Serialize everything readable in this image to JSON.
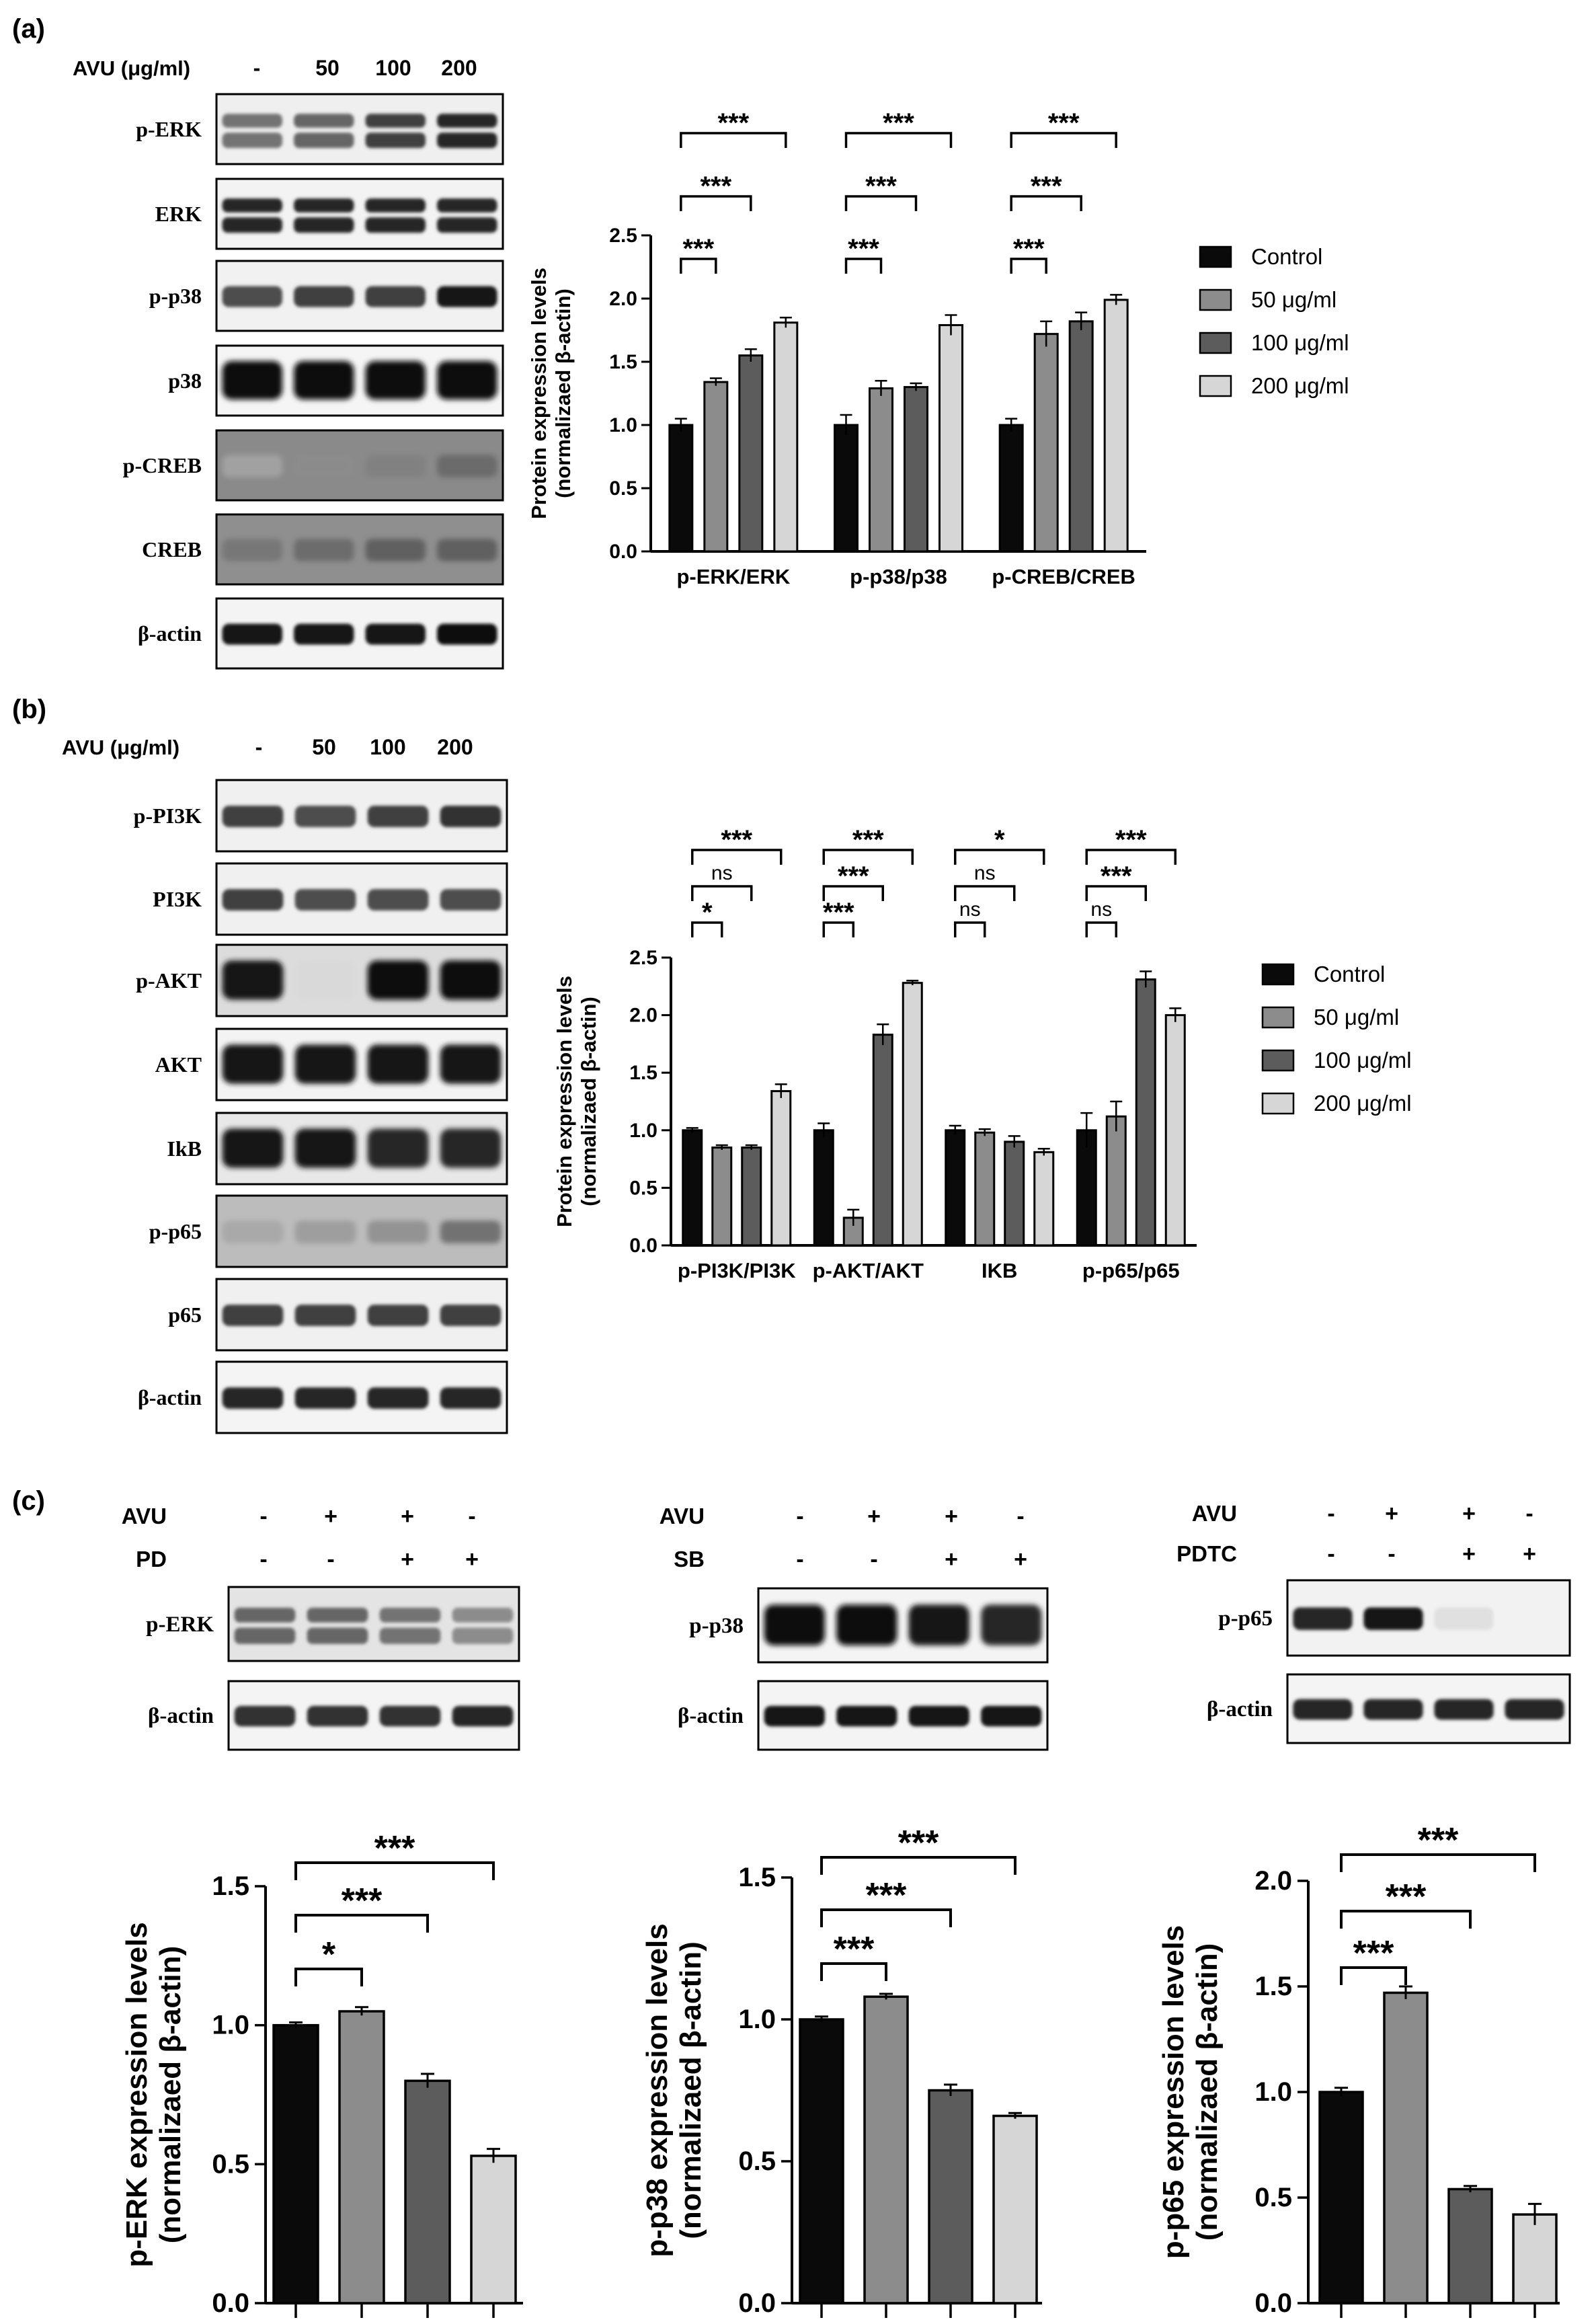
{
  "colors": {
    "Control": "#0a0a0a",
    "50 μg/ml": "#8c8c8c",
    "100 μg/ml": "#5c5c5c",
    "200 μg/ml": "#d6d6d6",
    "frame": "#000000"
  },
  "panels": {
    "a": {
      "label": "(a)",
      "dose_header": "AVU (μg/ml)",
      "lanes": [
        "-",
        "50",
        "100",
        "200"
      ],
      "blots": [
        {
          "name": "p-ERK",
          "pattern": "double",
          "intensity": [
            0.55,
            0.6,
            0.75,
            0.85
          ],
          "bg": "#efefef"
        },
        {
          "name": "ERK",
          "pattern": "double",
          "intensity": [
            0.85,
            0.85,
            0.85,
            0.85
          ],
          "bg": "#f3f3f3"
        },
        {
          "name": "p-p38",
          "pattern": "single",
          "intensity": [
            0.7,
            0.75,
            0.75,
            0.9
          ],
          "bg": "#f1f1f1"
        },
        {
          "name": "p38",
          "pattern": "thick",
          "intensity": [
            0.95,
            0.95,
            0.95,
            0.95
          ],
          "bg": "#f5f5f5"
        },
        {
          "name": "p-CREB",
          "pattern": "faint",
          "intensity": [
            0.35,
            0.45,
            0.5,
            0.6
          ],
          "bg": "#8a8a8a"
        },
        {
          "name": "CREB",
          "pattern": "faint",
          "intensity": [
            0.55,
            0.6,
            0.65,
            0.65
          ],
          "bg": "#8f8f8f"
        },
        {
          "name": "β-actin",
          "pattern": "single",
          "intensity": [
            0.9,
            0.9,
            0.9,
            0.95
          ],
          "bg": "#f4f4f4"
        }
      ]
    },
    "b": {
      "label": "(b)",
      "dose_header": "AVU (μg/ml)",
      "lanes": [
        "-",
        "50",
        "100",
        "200"
      ],
      "blots": [
        {
          "name": "p-PI3K",
          "pattern": "single",
          "intensity": [
            0.75,
            0.7,
            0.75,
            0.8
          ],
          "bg": "#f0f0f0"
        },
        {
          "name": "PI3K",
          "pattern": "single",
          "intensity": [
            0.75,
            0.7,
            0.7,
            0.7
          ],
          "bg": "#f0f0f0"
        },
        {
          "name": "p-AKT",
          "pattern": "thick",
          "intensity": [
            0.9,
            0.15,
            0.95,
            0.95
          ],
          "bg": "#dcdcdc"
        },
        {
          "name": "AKT",
          "pattern": "thick",
          "intensity": [
            0.9,
            0.9,
            0.9,
            0.9
          ],
          "bg": "#f3f3f3"
        },
        {
          "name": "IkB",
          "pattern": "thick",
          "intensity": [
            0.9,
            0.9,
            0.85,
            0.85
          ],
          "bg": "#e8e8e8"
        },
        {
          "name": "p-p65",
          "pattern": "faint",
          "intensity": [
            0.35,
            0.4,
            0.45,
            0.6
          ],
          "bg": "#bcbcbc"
        },
        {
          "name": "p65",
          "pattern": "single",
          "intensity": [
            0.75,
            0.75,
            0.75,
            0.75
          ],
          "bg": "#f0f0f0"
        },
        {
          "name": "β-actin",
          "pattern": "single",
          "intensity": [
            0.85,
            0.85,
            0.85,
            0.85
          ],
          "bg": "#f4f4f4"
        }
      ]
    },
    "c": {
      "label": "(c)",
      "groups": [
        {
          "row1_label": "AVU",
          "row1_signs": [
            "-",
            "+",
            "+",
            "-"
          ],
          "row2_label": "PD",
          "row2_signs": [
            "-",
            "-",
            "+",
            "+"
          ],
          "blots": [
            {
              "name": "p-ERK",
              "pattern": "double",
              "intensity": [
                0.6,
                0.6,
                0.55,
                0.45
              ],
              "bg": "#e4e4e4"
            },
            {
              "name": "β-actin",
              "pattern": "single",
              "intensity": [
                0.8,
                0.8,
                0.8,
                0.85
              ],
              "bg": "#f4f4f4"
            }
          ]
        },
        {
          "row1_label": "AVU",
          "row1_signs": [
            "-",
            "+",
            "+",
            "-"
          ],
          "row2_label": "SB",
          "row2_signs": [
            "-",
            "-",
            "+",
            "+"
          ],
          "blots": [
            {
              "name": "p-p38",
              "pattern": "thick",
              "intensity": [
                0.95,
                0.95,
                0.9,
                0.85
              ],
              "bg": "#f4f4f4"
            },
            {
              "name": "β-actin",
              "pattern": "single",
              "intensity": [
                0.9,
                0.9,
                0.9,
                0.9
              ],
              "bg": "#f4f4f4"
            }
          ]
        },
        {
          "row1_label": "AVU",
          "row1_signs": [
            "-",
            "+",
            "+",
            "-"
          ],
          "row2_label": "PDTC",
          "row2_signs": [
            "-",
            "-",
            "+",
            "+"
          ],
          "blots": [
            {
              "name": "p-p65",
              "pattern": "single",
              "intensity": [
                0.85,
                0.9,
                0.12,
                0.05
              ],
              "bg": "#f2f2f2"
            },
            {
              "name": "β-actin",
              "pattern": "single",
              "intensity": [
                0.85,
                0.85,
                0.85,
                0.85
              ],
              "bg": "#f4f4f4"
            }
          ]
        }
      ]
    }
  },
  "chart_data": [
    {
      "type": "bar",
      "panel": "a",
      "categories": [
        "p-ERK/ERK",
        "p-p38/p38",
        "p-CREB/CREB"
      ],
      "series": [
        {
          "name": "Control",
          "values": [
            1.0,
            1.0,
            1.0
          ],
          "errors": [
            0.05,
            0.08,
            0.05
          ]
        },
        {
          "name": "50 μg/ml",
          "values": [
            1.34,
            1.29,
            1.72
          ],
          "errors": [
            0.03,
            0.06,
            0.1
          ]
        },
        {
          "name": "100 μg/ml",
          "values": [
            1.55,
            1.3,
            1.82
          ],
          "errors": [
            0.05,
            0.03,
            0.07
          ]
        },
        {
          "name": "200 μg/ml",
          "values": [
            1.81,
            1.79,
            1.99
          ],
          "errors": [
            0.04,
            0.08,
            0.04
          ]
        }
      ],
      "ylabel_line1": "Protein expression levels",
      "ylabel_line2": "(normalizaed β-actin)",
      "ylim": [
        0,
        2.5
      ],
      "yticks": [
        "0.0",
        "0.5",
        "1.0",
        "1.5",
        "2.0",
        "2.5"
      ],
      "legend_position": "right",
      "significance": [
        {
          "category": 0,
          "to_series": 1,
          "label": "***"
        },
        {
          "category": 0,
          "to_series": 2,
          "label": "***"
        },
        {
          "category": 0,
          "to_series": 3,
          "label": "***"
        },
        {
          "category": 1,
          "to_series": 1,
          "label": "***"
        },
        {
          "category": 1,
          "to_series": 2,
          "label": "***"
        },
        {
          "category": 1,
          "to_series": 3,
          "label": "***"
        },
        {
          "category": 2,
          "to_series": 1,
          "label": "***"
        },
        {
          "category": 2,
          "to_series": 2,
          "label": "***"
        },
        {
          "category": 2,
          "to_series": 3,
          "label": "***"
        }
      ]
    },
    {
      "type": "bar",
      "panel": "b",
      "categories": [
        "p-PI3K/PI3K",
        "p-AKT/AKT",
        "IKB",
        "p-p65/p65"
      ],
      "series": [
        {
          "name": "Control",
          "values": [
            1.0,
            1.0,
            1.0,
            1.0
          ],
          "errors": [
            0.02,
            0.06,
            0.04,
            0.15
          ]
        },
        {
          "name": "50 μg/ml",
          "values": [
            0.85,
            0.24,
            0.98,
            1.12
          ],
          "errors": [
            0.02,
            0.07,
            0.03,
            0.13
          ]
        },
        {
          "name": "100 μg/ml",
          "values": [
            0.85,
            1.83,
            0.9,
            2.31
          ],
          "errors": [
            0.02,
            0.09,
            0.05,
            0.07
          ]
        },
        {
          "name": "200 μg/ml",
          "values": [
            1.34,
            2.28,
            0.81,
            2.0
          ],
          "errors": [
            0.06,
            0.02,
            0.03,
            0.06
          ]
        }
      ],
      "ylabel_line1": "Protein expression levels",
      "ylabel_line2": "(normalizaed β-actin)",
      "ylim": [
        0,
        2.5
      ],
      "yticks": [
        "0.0",
        "0.5",
        "1.0",
        "1.5",
        "2.0",
        "2.5"
      ],
      "legend_position": "right",
      "significance": [
        {
          "category": 0,
          "to_series": 1,
          "label": "*"
        },
        {
          "category": 0,
          "to_series": 2,
          "label": "ns"
        },
        {
          "category": 0,
          "to_series": 3,
          "label": "***"
        },
        {
          "category": 1,
          "to_series": 1,
          "label": "***"
        },
        {
          "category": 1,
          "to_series": 2,
          "label": "***"
        },
        {
          "category": 1,
          "to_series": 3,
          "label": "***"
        },
        {
          "category": 2,
          "to_series": 1,
          "label": "ns"
        },
        {
          "category": 2,
          "to_series": 2,
          "label": "ns"
        },
        {
          "category": 2,
          "to_series": 3,
          "label": "*"
        },
        {
          "category": 3,
          "to_series": 1,
          "label": "ns"
        },
        {
          "category": 3,
          "to_series": 2,
          "label": "***"
        },
        {
          "category": 3,
          "to_series": 3,
          "label": "***"
        }
      ]
    },
    {
      "type": "bar",
      "panel": "c1",
      "categories": [
        "",
        "",
        "",
        ""
      ],
      "values": [
        1.0,
        1.05,
        0.8,
        0.53
      ],
      "errors": [
        0.01,
        0.015,
        0.025,
        0.025
      ],
      "colors": [
        "#0a0a0a",
        "#8c8c8c",
        "#5c5c5c",
        "#d6d6d6"
      ],
      "ylabel_line1": "p-ERK expression levels",
      "ylabel_line2": "(normalizaed β-actin)",
      "ylim": [
        0,
        1.5
      ],
      "yticks": [
        "0.0",
        "0.5",
        "1.0",
        "1.5"
      ],
      "significance": [
        {
          "to_bar": 1,
          "label": "*"
        },
        {
          "to_bar": 2,
          "label": "***"
        },
        {
          "to_bar": 3,
          "label": "***"
        }
      ]
    },
    {
      "type": "bar",
      "panel": "c2",
      "categories": [
        "",
        "",
        "",
        ""
      ],
      "values": [
        1.0,
        1.08,
        0.75,
        0.66
      ],
      "errors": [
        0.01,
        0.01,
        0.02,
        0.01
      ],
      "colors": [
        "#0a0a0a",
        "#8c8c8c",
        "#5c5c5c",
        "#d6d6d6"
      ],
      "ylabel_line1": "p-p38 expression levels",
      "ylabel_line2": "(normalizaed β-actin)",
      "ylim": [
        0,
        1.5
      ],
      "yticks": [
        "0.0",
        "0.5",
        "1.0",
        "1.5"
      ],
      "significance": [
        {
          "to_bar": 1,
          "label": "***"
        },
        {
          "to_bar": 2,
          "label": "***"
        },
        {
          "to_bar": 3,
          "label": "***"
        }
      ]
    },
    {
      "type": "bar",
      "panel": "c3",
      "categories": [
        "",
        "",
        "",
        ""
      ],
      "values": [
        1.0,
        1.47,
        0.54,
        0.42
      ],
      "errors": [
        0.02,
        0.03,
        0.015,
        0.05
      ],
      "colors": [
        "#0a0a0a",
        "#8c8c8c",
        "#5c5c5c",
        "#d6d6d6"
      ],
      "ylabel_line1": "p-p65 expression levels",
      "ylabel_line2": "(normalizaed β-actin)",
      "ylim": [
        0,
        2.0
      ],
      "yticks": [
        "0.0",
        "0.5",
        "1.0",
        "1.5",
        "2.0"
      ],
      "significance": [
        {
          "to_bar": 1,
          "label": "***"
        },
        {
          "to_bar": 2,
          "label": "***"
        },
        {
          "to_bar": 3,
          "label": "***"
        }
      ]
    }
  ]
}
